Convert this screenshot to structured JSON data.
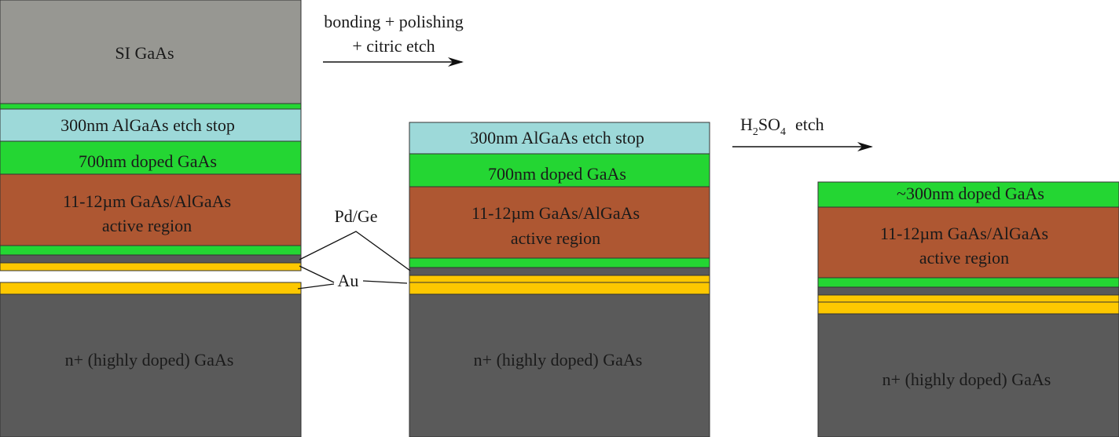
{
  "colors": {
    "substrate_si": "#979792",
    "etch_stop": "#9dd9d9",
    "doped_gaas": "#24d633",
    "active_region": "#ae5732",
    "pdge": "#595959",
    "au": "#fdc800",
    "nplus": "#5a5a5a",
    "stroke": "#333333",
    "text": "#1a1a1a"
  },
  "panel1": {
    "si_gaas": "SI GaAs",
    "etch_stop": "300nm AlGaAs etch stop",
    "doped": "700nm doped GaAs",
    "active_line1": "11-12µm GaAs/AlGaAs",
    "active_line2": "active region",
    "nplus": "n+ (highly doped) GaAs"
  },
  "panel2": {
    "etch_stop": "300nm AlGaAs etch stop",
    "doped": "700nm doped GaAs",
    "active_line1": "11-12µm GaAs/AlGaAs",
    "active_line2": "active region",
    "nplus": "n+ (highly doped) GaAs"
  },
  "panel3": {
    "doped": "~300nm doped GaAs",
    "active_line1": "11-12µm GaAs/AlGaAs",
    "active_line2": "active region",
    "nplus": "n+ (highly doped) GaAs"
  },
  "callouts": {
    "pdge": "Pd/Ge",
    "au": "Au"
  },
  "step1": {
    "line1": "bonding + polishing",
    "line2": "+ citric etch"
  },
  "step2": {
    "h": "H",
    "sub2": "2",
    "so": "SO",
    "sub4": "4",
    "etch": "etch"
  }
}
